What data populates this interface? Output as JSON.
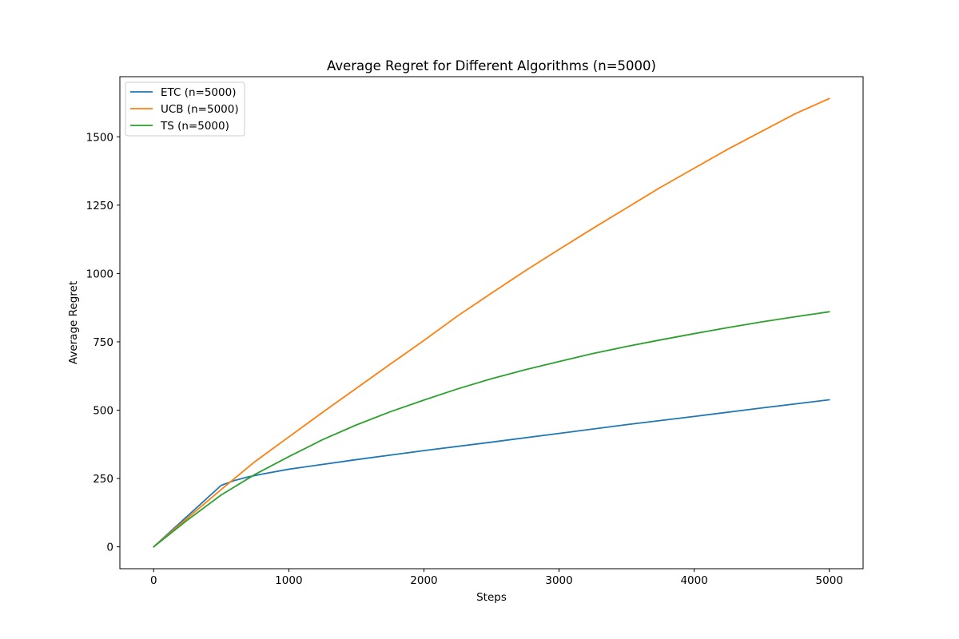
{
  "chart_data": {
    "type": "line",
    "title": "Average Regret for Different Algorithms (n=5000)",
    "xlabel": "Steps",
    "ylabel": "Average Regret",
    "xlim": [
      -250,
      5250
    ],
    "ylim": [
      -80,
      1720
    ],
    "xticks": [
      0,
      1000,
      2000,
      3000,
      4000,
      5000
    ],
    "yticks": [
      0,
      250,
      500,
      750,
      1000,
      1250,
      1500
    ],
    "grid": false,
    "legend_position": "top-left",
    "series": [
      {
        "name": "ETC (n=5000)",
        "color": "#1f77b4",
        "x": [
          0,
          100,
          200,
          300,
          400,
          500,
          600,
          700,
          800,
          1000,
          1500,
          2000,
          2500,
          3000,
          3500,
          4000,
          4500,
          5000
        ],
        "y": [
          0,
          45,
          90,
          135,
          180,
          225,
          243,
          256,
          266,
          284,
          319,
          352,
          383,
          415,
          447,
          477,
          508,
          538
        ]
      },
      {
        "name": "UCB (n=5000)",
        "color": "#ff7f0e",
        "x": [
          0,
          250,
          500,
          750,
          1000,
          1250,
          1500,
          1750,
          2000,
          2250,
          2500,
          2750,
          3000,
          3250,
          3500,
          3750,
          4000,
          4250,
          4500,
          4750,
          5000
        ],
        "y": [
          0,
          105,
          210,
          312,
          402,
          492,
          580,
          668,
          755,
          845,
          928,
          1010,
          1088,
          1165,
          1240,
          1315,
          1385,
          1455,
          1520,
          1585,
          1640
        ]
      },
      {
        "name": "TS (n=5000)",
        "color": "#2ca02c",
        "x": [
          0,
          250,
          500,
          750,
          1000,
          1250,
          1500,
          1750,
          2000,
          2250,
          2500,
          2750,
          3000,
          3250,
          3500,
          3750,
          4000,
          4250,
          4500,
          4750,
          5000
        ],
        "y": [
          0,
          98,
          190,
          265,
          330,
          392,
          446,
          494,
          537,
          578,
          615,
          648,
          678,
          707,
          733,
          757,
          780,
          802,
          823,
          842,
          860
        ]
      }
    ]
  }
}
